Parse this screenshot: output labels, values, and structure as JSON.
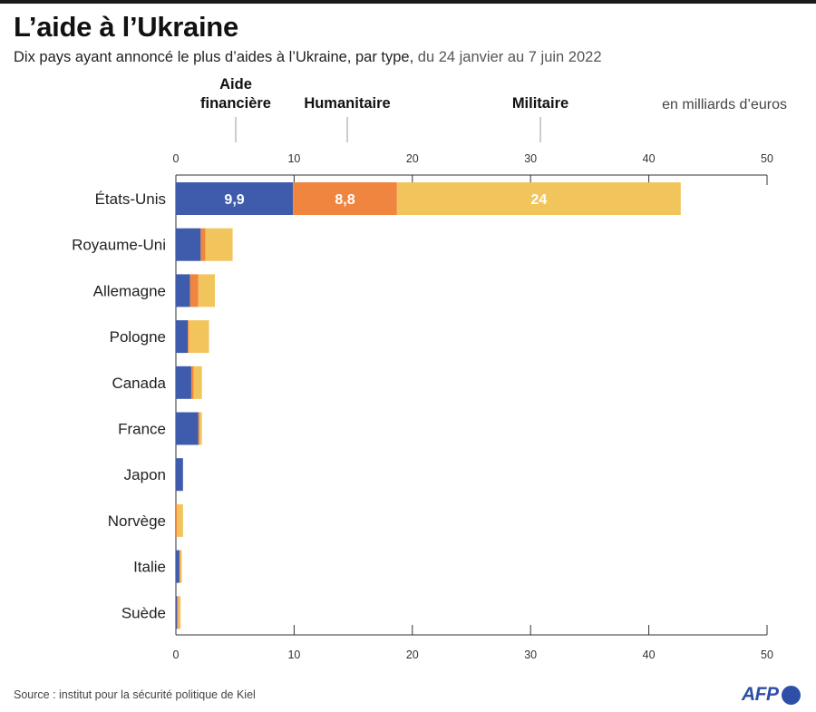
{
  "title": "L’aide à l’Ukraine",
  "subtitle_main": "Dix pays ayant annoncé le plus d’aides à l’Ukraine, par type,",
  "subtitle_dates": "du 24 janvier au 7 juin 2022",
  "source": "Source : institut pour la sécurité politique de Kiel",
  "logo": "AFP",
  "colors": {
    "financial": "#3f5bab",
    "humanitarian": "#f08540",
    "military": "#f2c55c",
    "axis": "#333333"
  },
  "chart_data": {
    "type": "bar",
    "orientation": "horizontal",
    "stacked": true,
    "unit_label": "en milliards d’euros",
    "xlim": [
      0,
      50
    ],
    "ticks": [
      0,
      10,
      20,
      30,
      40,
      50
    ],
    "legend_placement": "top",
    "categories": [
      "États-Unis",
      "Royaume-Uni",
      "Allemagne",
      "Pologne",
      "Canada",
      "France",
      "Japon",
      "Norvège",
      "Italie",
      "Suède"
    ],
    "series": [
      {
        "name": "Aide financière",
        "legend_lines": [
          "Aide",
          "financière"
        ],
        "color": "#3f5bab",
        "values": [
          9.9,
          2.1,
          1.2,
          1.0,
          1.3,
          1.9,
          0.6,
          0.0,
          0.3,
          0.1
        ]
      },
      {
        "name": "Humanitaire",
        "legend_lines": [
          "Humanitaire"
        ],
        "color": "#f08540",
        "values": [
          8.8,
          0.4,
          0.7,
          0.1,
          0.2,
          0.1,
          0.0,
          0.1,
          0.05,
          0.1
        ]
      },
      {
        "name": "Militaire",
        "legend_lines": [
          "Militaire"
        ],
        "color": "#f2c55c",
        "values": [
          24.0,
          2.3,
          1.4,
          1.7,
          0.7,
          0.2,
          0.0,
          0.5,
          0.15,
          0.2
        ]
      }
    ],
    "data_labels": [
      {
        "category": "États-Unis",
        "series": "Aide financière",
        "text": "9,9"
      },
      {
        "category": "États-Unis",
        "series": "Humanitaire",
        "text": "8,8"
      },
      {
        "category": "États-Unis",
        "series": "Militaire",
        "text": "24"
      }
    ]
  }
}
